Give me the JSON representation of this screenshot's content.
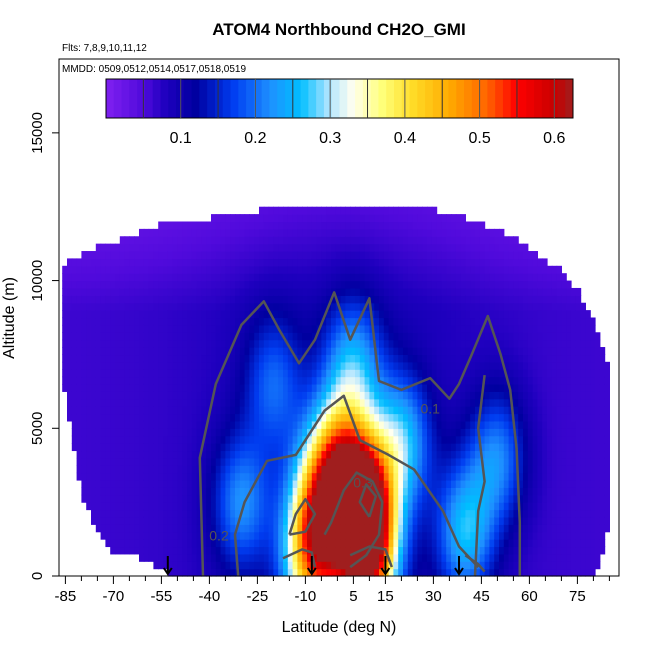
{
  "chart_data": {
    "type": "heatmap",
    "title": "ATOM4 Northbound CH2O_GMI",
    "subtitle_flights": "Flts: 7,8,9,10,11,12",
    "subtitle_dates": "MMDD: 0509,0512,0514,0517,0518,0519",
    "xlabel": "Latitude (deg N)",
    "ylabel": "Altitude (m)",
    "xlim": [
      -87,
      88
    ],
    "ylim": [
      0,
      17500
    ],
    "x_ticks": [
      -85,
      -70,
      -55,
      -40,
      -25,
      -10,
      5,
      15,
      30,
      45,
      60,
      75
    ],
    "y_ticks": [
      0,
      5000,
      10000,
      15000
    ],
    "colorbar": {
      "range": [
        0,
        0.625
      ],
      "ticks": [
        0.1,
        0.2,
        0.3,
        0.4,
        0.5,
        0.6
      ],
      "ticklabels": [
        "0.1",
        "0.2",
        "0.3",
        "0.4",
        "0.5",
        "0.6"
      ]
    },
    "ceiling_profile": [
      {
        "lat": -86,
        "alt": 10400
      },
      {
        "lat": -80,
        "alt": 10800
      },
      {
        "lat": -70,
        "alt": 11200
      },
      {
        "lat": -60,
        "alt": 11600
      },
      {
        "lat": -50,
        "alt": 12000
      },
      {
        "lat": -40,
        "alt": 12000
      },
      {
        "lat": -30,
        "alt": 12100
      },
      {
        "lat": -20,
        "alt": 12400
      },
      {
        "lat": -10,
        "alt": 12400
      },
      {
        "lat": 0,
        "alt": 12400
      },
      {
        "lat": 10,
        "alt": 12400
      },
      {
        "lat": 20,
        "alt": 12400
      },
      {
        "lat": 30,
        "alt": 12300
      },
      {
        "lat": 40,
        "alt": 12000
      },
      {
        "lat": 50,
        "alt": 11600
      },
      {
        "lat": 60,
        "alt": 11000
      },
      {
        "lat": 70,
        "alt": 10200
      },
      {
        "lat": 75,
        "alt": 9600
      },
      {
        "lat": 80,
        "alt": 8500
      },
      {
        "lat": 85,
        "alt": 7000
      }
    ],
    "floor_profile": [
      {
        "lat": -86,
        "alt": 6800
      },
      {
        "lat": -80,
        "alt": 2800
      },
      {
        "lat": -75,
        "alt": 1600
      },
      {
        "lat": -70,
        "alt": 900
      },
      {
        "lat": -60,
        "alt": 700
      },
      {
        "lat": -50,
        "alt": 0
      },
      {
        "lat": 70,
        "alt": 0
      },
      {
        "lat": 80,
        "alt": 0
      },
      {
        "lat": 85,
        "alt": 1800
      }
    ],
    "hot_spots": [
      {
        "lat": 8,
        "alt": 2500,
        "value": 0.45
      },
      {
        "lat": 10,
        "alt": 700,
        "value": 0.39
      },
      {
        "lat": -8,
        "alt": 600,
        "value": 0.38
      },
      {
        "lat": 5,
        "alt": 2000,
        "value": 0.36
      },
      {
        "lat": -5,
        "alt": 2500,
        "value": 0.32
      },
      {
        "lat": 0,
        "alt": 4000,
        "value": 0.28
      },
      {
        "lat": 5,
        "alt": 7000,
        "value": 0.22
      },
      {
        "lat": -20,
        "alt": 6500,
        "value": 0.17
      },
      {
        "lat": 50,
        "alt": 4000,
        "value": 0.2
      },
      {
        "lat": 20,
        "alt": 4500,
        "value": 0.24
      },
      {
        "lat": -30,
        "alt": 2500,
        "value": 0.2
      },
      {
        "lat": 40,
        "alt": 1500,
        "value": 0.24
      }
    ],
    "contour_levels": [
      0.1,
      0.2,
      0.3
    ],
    "contour_labels": [
      {
        "text": "0.1",
        "lat": 29,
        "alt": 5500
      },
      {
        "text": "0.2",
        "lat": -37,
        "alt": 1200
      },
      {
        "text": "0.3",
        "lat": 8,
        "alt": 3000
      }
    ],
    "profile_markers_lat": [
      -53,
      -8,
      15,
      38
    ]
  }
}
